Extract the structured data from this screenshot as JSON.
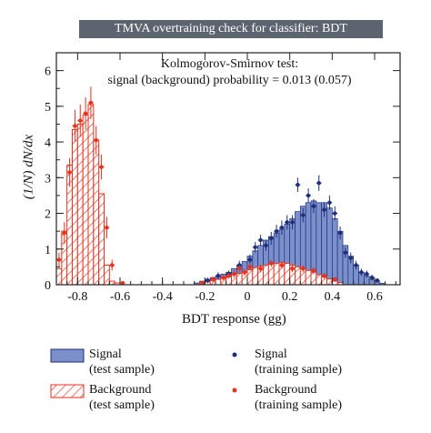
{
  "chart_data": {
    "type": "bar",
    "title": "TMVA overtraining check for classifier: BDT",
    "annotation_line1": "Kolmogorov-Smirnov test:",
    "annotation_line2": "signal (background) probability = 0.013 (0.057)",
    "xlabel": "BDT response (gg)",
    "ylabel": "(1/N) dN/dx",
    "xlim": [
      -0.9,
      0.72
    ],
    "ylim": [
      0,
      6.5
    ],
    "x_ticks": [
      "-0.8",
      "-0.6",
      "-0.4",
      "-0.2",
      "0",
      "0.2",
      "0.4",
      "0.6"
    ],
    "y_ticks": [
      "0",
      "1",
      "2",
      "3",
      "4",
      "5",
      "6"
    ],
    "grid": false,
    "legend_position": "bottom",
    "bin_width": 0.025,
    "background_test": {
      "label": "Background",
      "sublabel": "(test sample)",
      "color": "#e8321e",
      "bins": [
        {
          "x": -0.8875,
          "y": 0.45
        },
        {
          "x": -0.8625,
          "y": 1.5
        },
        {
          "x": -0.8375,
          "y": 3.35
        },
        {
          "x": -0.8125,
          "y": 4.35
        },
        {
          "x": -0.7875,
          "y": 4.5
        },
        {
          "x": -0.7625,
          "y": 4.75
        },
        {
          "x": -0.7375,
          "y": 5.05
        },
        {
          "x": -0.7125,
          "y": 4.05
        },
        {
          "x": -0.6875,
          "y": 2.55
        },
        {
          "x": -0.6625,
          "y": 0.55
        },
        {
          "x": -0.6375,
          "y": 0.1
        },
        {
          "x": -0.6125,
          "y": 0.05
        },
        {
          "x": -0.2125,
          "y": 0.05
        },
        {
          "x": -0.1875,
          "y": 0.08
        },
        {
          "x": -0.1625,
          "y": 0.12
        },
        {
          "x": -0.1375,
          "y": 0.15
        },
        {
          "x": -0.1125,
          "y": 0.18
        },
        {
          "x": -0.0875,
          "y": 0.22
        },
        {
          "x": -0.0625,
          "y": 0.28
        },
        {
          "x": -0.0375,
          "y": 0.32
        },
        {
          "x": -0.0125,
          "y": 0.36
        },
        {
          "x": 0.0125,
          "y": 0.42
        },
        {
          "x": 0.0375,
          "y": 0.48
        },
        {
          "x": 0.0625,
          "y": 0.52
        },
        {
          "x": 0.0875,
          "y": 0.55
        },
        {
          "x": 0.1125,
          "y": 0.58
        },
        {
          "x": 0.1375,
          "y": 0.6
        },
        {
          "x": 0.1625,
          "y": 0.62
        },
        {
          "x": 0.1875,
          "y": 0.6
        },
        {
          "x": 0.2125,
          "y": 0.55
        },
        {
          "x": 0.2375,
          "y": 0.5
        },
        {
          "x": 0.2625,
          "y": 0.45
        },
        {
          "x": 0.2875,
          "y": 0.4
        },
        {
          "x": 0.3125,
          "y": 0.35
        },
        {
          "x": 0.3375,
          "y": 0.28
        },
        {
          "x": 0.3625,
          "y": 0.22
        },
        {
          "x": 0.3875,
          "y": 0.16
        },
        {
          "x": 0.4125,
          "y": 0.1
        },
        {
          "x": 0.4375,
          "y": 0.06
        }
      ]
    },
    "signal_test": {
      "label": "Signal",
      "sublabel": "(test sample)",
      "color": "#7b8fcb",
      "edge_color": "#1f2f7a",
      "bins": [
        {
          "x": -0.2375,
          "y": 0.05
        },
        {
          "x": -0.2125,
          "y": 0.1
        },
        {
          "x": -0.1875,
          "y": 0.15
        },
        {
          "x": -0.1625,
          "y": 0.2
        },
        {
          "x": -0.1375,
          "y": 0.25
        },
        {
          "x": -0.1125,
          "y": 0.3
        },
        {
          "x": -0.0875,
          "y": 0.35
        },
        {
          "x": -0.0625,
          "y": 0.45
        },
        {
          "x": -0.0375,
          "y": 0.55
        },
        {
          "x": -0.0125,
          "y": 0.65
        },
        {
          "x": 0.0125,
          "y": 0.8
        },
        {
          "x": 0.0375,
          "y": 0.95
        },
        {
          "x": 0.0625,
          "y": 1.1
        },
        {
          "x": 0.0875,
          "y": 1.25
        },
        {
          "x": 0.1125,
          "y": 1.35
        },
        {
          "x": 0.1375,
          "y": 1.45
        },
        {
          "x": 0.1625,
          "y": 1.55
        },
        {
          "x": 0.1875,
          "y": 1.7
        },
        {
          "x": 0.2125,
          "y": 1.85
        },
        {
          "x": 0.2375,
          "y": 2.05
        },
        {
          "x": 0.2625,
          "y": 2.2
        },
        {
          "x": 0.2875,
          "y": 2.3
        },
        {
          "x": 0.3125,
          "y": 2.35
        },
        {
          "x": 0.3375,
          "y": 2.3
        },
        {
          "x": 0.3625,
          "y": 2.3
        },
        {
          "x": 0.3875,
          "y": 2.15
        },
        {
          "x": 0.4125,
          "y": 1.85
        },
        {
          "x": 0.4375,
          "y": 1.5
        },
        {
          "x": 0.4625,
          "y": 1.1
        },
        {
          "x": 0.4875,
          "y": 0.8
        },
        {
          "x": 0.5125,
          "y": 0.55
        },
        {
          "x": 0.5375,
          "y": 0.35
        },
        {
          "x": 0.5625,
          "y": 0.25
        },
        {
          "x": 0.5875,
          "y": 0.15
        },
        {
          "x": 0.6125,
          "y": 0.08
        },
        {
          "x": 0.6375,
          "y": 0.04
        }
      ]
    },
    "signal_training": {
      "label": "Signal",
      "sublabel": "(training sample)",
      "color": "#1f2f7a",
      "points": [
        {
          "x": -0.1875,
          "y": 0.12,
          "err": 0.08
        },
        {
          "x": -0.1375,
          "y": 0.25,
          "err": 0.1
        },
        {
          "x": -0.0875,
          "y": 0.3,
          "err": 0.1
        },
        {
          "x": -0.0375,
          "y": 0.55,
          "err": 0.12
        },
        {
          "x": 0.0125,
          "y": 0.7,
          "err": 0.15
        },
        {
          "x": 0.0375,
          "y": 1.05,
          "err": 0.15
        },
        {
          "x": 0.0625,
          "y": 1.25,
          "err": 0.15
        },
        {
          "x": 0.0875,
          "y": 1.1,
          "err": 0.15
        },
        {
          "x": 0.1125,
          "y": 1.3,
          "err": 0.18
        },
        {
          "x": 0.1375,
          "y": 1.5,
          "err": 0.18
        },
        {
          "x": 0.1625,
          "y": 1.6,
          "err": 0.2
        },
        {
          "x": 0.1875,
          "y": 1.75,
          "err": 0.2
        },
        {
          "x": 0.2125,
          "y": 1.75,
          "err": 0.2
        },
        {
          "x": 0.2375,
          "y": 2.8,
          "err": 0.2
        },
        {
          "x": 0.2625,
          "y": 1.95,
          "err": 0.2
        },
        {
          "x": 0.2875,
          "y": 2.5,
          "err": 0.2
        },
        {
          "x": 0.3125,
          "y": 2.2,
          "err": 0.2
        },
        {
          "x": 0.3375,
          "y": 2.85,
          "err": 0.22
        },
        {
          "x": 0.3625,
          "y": 2.1,
          "err": 0.2
        },
        {
          "x": 0.3875,
          "y": 2.3,
          "err": 0.2
        },
        {
          "x": 0.4125,
          "y": 2.0,
          "err": 0.2
        },
        {
          "x": 0.4375,
          "y": 1.45,
          "err": 0.18
        },
        {
          "x": 0.4625,
          "y": 0.9,
          "err": 0.15
        },
        {
          "x": 0.4875,
          "y": 0.75,
          "err": 0.15
        },
        {
          "x": 0.5125,
          "y": 0.55,
          "err": 0.12
        },
        {
          "x": 0.5375,
          "y": 0.35,
          "err": 0.1
        },
        {
          "x": 0.5625,
          "y": 0.3,
          "err": 0.1
        },
        {
          "x": 0.5875,
          "y": 0.2,
          "err": 0.08
        },
        {
          "x": 0.6125,
          "y": 0.12,
          "err": 0.06
        }
      ]
    },
    "background_training": {
      "label": "Background",
      "sublabel": "(training sample)",
      "color": "#e8321e",
      "points": [
        {
          "x": -0.8875,
          "y": 0.7,
          "err": 0.2
        },
        {
          "x": -0.8625,
          "y": 1.45,
          "err": 0.3
        },
        {
          "x": -0.8375,
          "y": 3.15,
          "err": 0.4
        },
        {
          "x": -0.8125,
          "y": 4.45,
          "err": 0.45
        },
        {
          "x": -0.7875,
          "y": 4.6,
          "err": 0.45
        },
        {
          "x": -0.7625,
          "y": 4.8,
          "err": 0.45
        },
        {
          "x": -0.7375,
          "y": 5.1,
          "err": 0.45
        },
        {
          "x": -0.7125,
          "y": 4.05,
          "err": 0.4
        },
        {
          "x": -0.6875,
          "y": 3.3,
          "err": 0.35
        },
        {
          "x": -0.6625,
          "y": 1.6,
          "err": 0.3
        },
        {
          "x": -0.6375,
          "y": 0.55,
          "err": 0.15
        },
        {
          "x": -0.5875,
          "y": 0.05,
          "err": 0.05
        },
        {
          "x": -0.2125,
          "y": 0.05,
          "err": 0.05
        },
        {
          "x": -0.1625,
          "y": 0.15,
          "err": 0.08
        },
        {
          "x": -0.1125,
          "y": 0.2,
          "err": 0.08
        },
        {
          "x": -0.0875,
          "y": 0.25,
          "err": 0.08
        },
        {
          "x": -0.0625,
          "y": 0.3,
          "err": 0.1
        },
        {
          "x": -0.0375,
          "y": 0.45,
          "err": 0.1
        },
        {
          "x": -0.0125,
          "y": 0.35,
          "err": 0.1
        },
        {
          "x": 0.0125,
          "y": 0.5,
          "err": 0.1
        },
        {
          "x": 0.0625,
          "y": 0.45,
          "err": 0.1
        },
        {
          "x": 0.1125,
          "y": 0.6,
          "err": 0.1
        },
        {
          "x": 0.1625,
          "y": 0.55,
          "err": 0.1
        },
        {
          "x": 0.2125,
          "y": 0.45,
          "err": 0.1
        },
        {
          "x": 0.2625,
          "y": 0.45,
          "err": 0.1
        },
        {
          "x": 0.3125,
          "y": 0.4,
          "err": 0.1
        },
        {
          "x": 0.3625,
          "y": 0.25,
          "err": 0.08
        },
        {
          "x": 0.4125,
          "y": 0.15,
          "err": 0.06
        }
      ]
    }
  }
}
